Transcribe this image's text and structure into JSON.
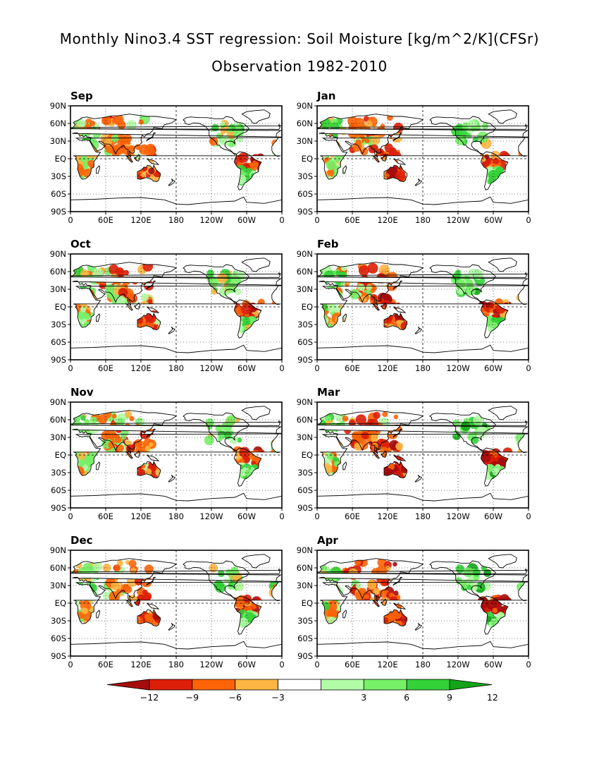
{
  "title": {
    "line1": "Monthly Nino3.4 SST regression: Soil Moisture [kg/m^2/K](CFSr)",
    "line2": "Observation 1982-2010"
  },
  "chart_data": {
    "type": "heatmap",
    "variable": "Soil Moisture",
    "units": "kg/m^2/K",
    "projection": "lat-lon, 0 to 360 longitude",
    "xlim": [
      0,
      360
    ],
    "ylim": [
      -90,
      90
    ],
    "x_tick_labels": [
      "0",
      "60E",
      "120E",
      "180",
      "120W",
      "60W",
      "0"
    ],
    "y_tick_labels": [
      "90N",
      "60N",
      "30N",
      "EQ",
      "30S",
      "60S",
      "90S"
    ],
    "grid": "dashed at 180 and EQ, dotted elsewhere",
    "panels": [
      {
        "name": "Sep",
        "intensity": 0.55
      },
      {
        "name": "Jan",
        "intensity": 0.75
      },
      {
        "name": "Oct",
        "intensity": 0.5
      },
      {
        "name": "Feb",
        "intensity": 0.85
      },
      {
        "name": "Nov",
        "intensity": 0.45
      },
      {
        "name": "Mar",
        "intensity": 0.95
      },
      {
        "name": "Dec",
        "intensity": 0.55
      },
      {
        "name": "Apr",
        "intensity": 1.0
      }
    ],
    "colorbar": {
      "labels": [
        "-12",
        "-9",
        "-6",
        "-3",
        "3",
        "6",
        "9",
        "12"
      ],
      "colors": [
        "#a50c0c",
        "#dd1e08",
        "#fd6407",
        "#fdb543",
        "#ffffff",
        "#b2fca7",
        "#75f067",
        "#33d238",
        "#13a419"
      ],
      "orientation": "horizontal",
      "triangle_ends": true
    }
  },
  "colors": {
    "land_outline": "#000000",
    "drying": "#c41010",
    "wetting": "#2fbf3a"
  }
}
